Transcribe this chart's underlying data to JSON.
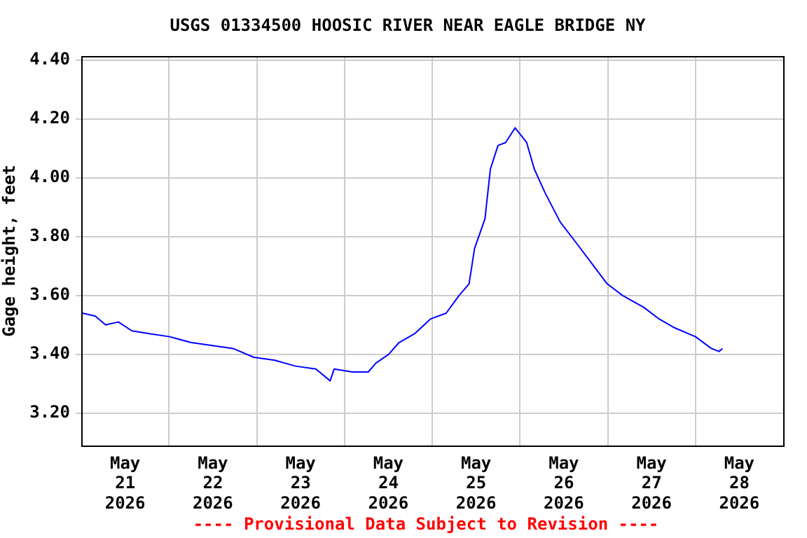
{
  "chart_data": {
    "type": "line",
    "title": "USGS 01334500 HOOSIC RIVER NEAR EAGLE BRIDGE NY",
    "ylabel": "Gage height, feet",
    "annotations": [
      "---- Provisional Data Subject to Revision ----"
    ],
    "x": [
      "2026-05-21T00:20",
      "2026-05-21T03:50",
      "2026-05-21T06:40",
      "2026-05-21T10:10",
      "2026-05-21T13:50",
      "2026-05-21T18:50",
      "2026-05-22T00:10",
      "2026-05-22T06:05",
      "2026-05-22T11:50",
      "2026-05-22T17:30",
      "2026-05-22T23:10",
      "2026-05-23T04:55",
      "2026-05-23T10:35",
      "2026-05-23T16:10",
      "2026-05-23T20:05",
      "2026-05-23T21:10",
      "2026-05-24T02:10",
      "2026-05-24T06:30",
      "2026-05-24T08:35",
      "2026-05-24T12:05",
      "2026-05-24T14:55",
      "2026-05-24T19:10",
      "2026-05-24T23:30",
      "2026-05-25T03:50",
      "2026-05-25T07:20",
      "2026-05-25T10:05",
      "2026-05-25T11:35",
      "2026-05-25T14:25",
      "2026-05-25T15:55",
      "2026-05-25T18:00",
      "2026-05-25T20:05",
      "2026-05-25T22:40",
      "2026-05-26T01:50",
      "2026-05-26T03:55",
      "2026-05-26T06:50",
      "2026-05-26T11:00",
      "2026-05-26T15:20",
      "2026-05-26T19:35",
      "2026-05-26T23:50",
      "2026-05-27T04:05",
      "2026-05-27T09:50",
      "2026-05-27T14:05",
      "2026-05-27T18:20",
      "2026-05-28T00:00",
      "2026-05-28T04:20",
      "2026-05-28T06:25",
      "2026-05-28T07:25"
    ],
    "series": [
      {
        "color": "#0000ff",
        "values": [
          3.54,
          3.53,
          3.5,
          3.51,
          3.48,
          3.47,
          3.46,
          3.44,
          3.43,
          3.42,
          3.39,
          3.38,
          3.36,
          3.35,
          3.31,
          3.35,
          3.34,
          3.34,
          3.37,
          3.4,
          3.44,
          3.47,
          3.52,
          3.54,
          3.6,
          3.64,
          3.76,
          3.86,
          4.03,
          4.11,
          4.12,
          4.17,
          4.12,
          4.03,
          3.95,
          3.85,
          3.78,
          3.71,
          3.64,
          3.6,
          3.56,
          3.52,
          3.49,
          3.46,
          3.42,
          3.41,
          3.42
        ]
      }
    ],
    "xlim": [
      "2026-05-21",
      "2026-05-29"
    ],
    "xticks": [
      {
        "value": "2026-05-21T12:00",
        "label": "May 21 2026"
      },
      {
        "value": "2026-05-22T12:00",
        "label": "May 22 2026"
      },
      {
        "value": "2026-05-23T12:00",
        "label": "May 23 2026"
      },
      {
        "value": "2026-05-24T12:00",
        "label": "May 24 2026"
      },
      {
        "value": "2026-05-25T12:00",
        "label": "May 25 2026"
      },
      {
        "value": "2026-05-26T12:00",
        "label": "May 26 2026"
      },
      {
        "value": "2026-05-27T12:00",
        "label": "May 27 2026"
      },
      {
        "value": "2026-05-28T12:00",
        "label": "May 28 2026"
      },
      {
        "value": "2026-05-22",
        "label": null
      },
      {
        "value": "2026-05-23",
        "label": null
      },
      {
        "value": "2026-05-24",
        "label": null
      },
      {
        "value": "2026-05-25",
        "label": null
      },
      {
        "value": "2026-05-26",
        "label": null
      },
      {
        "value": "2026-05-27",
        "label": null
      },
      {
        "value": "2026-05-28",
        "label": null
      }
    ],
    "ylim": [
      3.09,
      4.414
    ],
    "yticks": [
      {
        "value": 3.2,
        "label": "3.20"
      },
      {
        "value": 3.4,
        "label": "3.40"
      },
      {
        "value": 3.6,
        "label": "3.60"
      },
      {
        "value": 3.8,
        "label": "3.80"
      },
      {
        "value": 4.0,
        "label": "4.00"
      },
      {
        "value": 4.2,
        "label": "4.20"
      },
      {
        "value": 4.4,
        "label": "4.40"
      }
    ],
    "grid": true,
    "legend": false,
    "marker": "none",
    "line_style": "solid"
  }
}
